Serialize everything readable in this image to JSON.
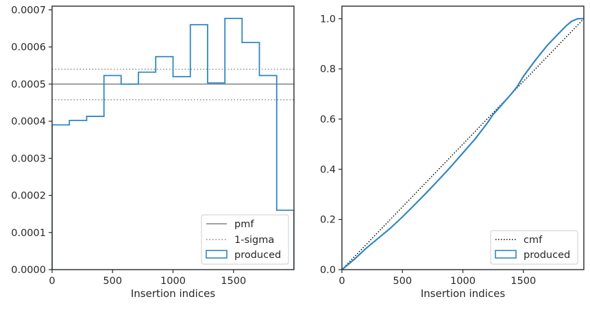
{
  "chart_data": [
    {
      "type": "histogram-step",
      "xlabel": "Insertion indices",
      "ylabel": "",
      "xlim": [
        0,
        2000
      ],
      "ylim": [
        0,
        0.00071
      ],
      "x_ticks": [
        0,
        500,
        1000,
        1500
      ],
      "x_tick_labels": [
        "0",
        "500",
        "1000",
        "1500"
      ],
      "y_ticks": [
        0,
        0.0001,
        0.0002,
        0.0003,
        0.0004,
        0.0005,
        0.0006,
        0.0007
      ],
      "y_tick_labels": [
        "0.0000",
        "0.0001",
        "0.0002",
        "0.0003",
        "0.0004",
        "0.0005",
        "0.0006",
        "0.0007"
      ],
      "bin_edges": [
        0,
        143,
        286,
        429,
        571,
        714,
        857,
        1000,
        1143,
        1286,
        1429,
        1571,
        1714,
        1857,
        2000
      ],
      "bin_values": [
        0.00039,
        0.000402,
        0.000413,
        0.000523,
        0.0005,
        0.000532,
        0.000574,
        0.00052,
        0.00066,
        0.000503,
        0.000677,
        0.000612,
        0.000523,
        0.00016
      ],
      "reference_lines": [
        {
          "name": "pmf",
          "y": 0.0005,
          "style": "solid",
          "color": "#808080"
        },
        {
          "name": "1-sigma",
          "y": 0.00054,
          "style": "dotted",
          "color": "#808080"
        },
        {
          "name": "1-sigma",
          "y": 0.000458,
          "style": "dotted",
          "color": "#808080"
        }
      ],
      "series_name": "produced",
      "series_color": "#2e86c1",
      "legend": {
        "placement": "lower-right",
        "entries": [
          "pmf",
          "1-sigma",
          "produced"
        ]
      },
      "grid": false
    },
    {
      "type": "line",
      "xlabel": "Insertion indices",
      "ylabel": "",
      "xlim": [
        0,
        2000
      ],
      "ylim": [
        0,
        1.05
      ],
      "x_ticks": [
        0,
        500,
        1000,
        1500
      ],
      "x_tick_labels": [
        "0",
        "500",
        "1000",
        "1500"
      ],
      "y_ticks": [
        0,
        0.2,
        0.4,
        0.6,
        0.8,
        1.0
      ],
      "y_tick_labels": [
        "0.0",
        "0.2",
        "0.4",
        "0.6",
        "0.8",
        "1.0"
      ],
      "series": [
        {
          "name": "cmf",
          "style": "dotted",
          "color": "#000000",
          "x": [
            0,
            2000
          ],
          "y": [
            0,
            1
          ]
        },
        {
          "name": "produced",
          "style": "step",
          "color": "#2e86c1",
          "x": [
            0,
            100,
            200,
            300,
            400,
            500,
            600,
            700,
            800,
            900,
            1000,
            1100,
            1200,
            1250,
            1300,
            1400,
            1450,
            1500,
            1600,
            1700,
            1800,
            1850,
            1900,
            1950,
            2000
          ],
          "y": [
            0,
            0.04,
            0.085,
            0.125,
            0.165,
            0.21,
            0.258,
            0.307,
            0.358,
            0.41,
            0.465,
            0.52,
            0.583,
            0.618,
            0.645,
            0.7,
            0.73,
            0.77,
            0.835,
            0.895,
            0.945,
            0.97,
            0.99,
            1.0,
            1.0
          ]
        }
      ],
      "legend": {
        "placement": "lower-right",
        "entries": [
          "cmf",
          "produced"
        ]
      },
      "grid": false
    }
  ]
}
